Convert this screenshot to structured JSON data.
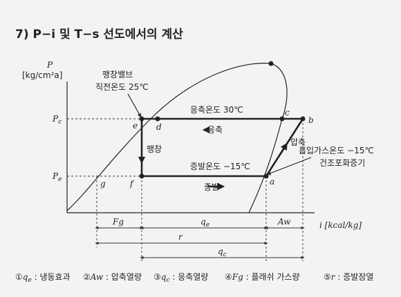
{
  "heading": {
    "number": "7)",
    "text": "P−i 및 T−s 선도에서의 계산"
  },
  "axis": {
    "y_symbol": "P",
    "y_unit": "[kg/cm²a]",
    "pc": {
      "main": "P",
      "sub": "c"
    },
    "pe": {
      "main": "P",
      "sub": "e"
    },
    "x_label": "i [kcal/kg]"
  },
  "annotations": {
    "valve_1": "팽창밸브",
    "valve_2": "직전온도 25℃",
    "cond_temp": "응축온도 30℃",
    "cond": "응축",
    "expand": "팽창",
    "evap_temp": "증발온도 −15℃",
    "evap": "증발",
    "compress": "압축",
    "suction_1": "흡입가스온도 −15℃",
    "suction_2": "건조포화증기"
  },
  "points": {
    "e": "e",
    "d": "d",
    "c": "c",
    "b": "b",
    "g": "g",
    "f": "f",
    "a": "a"
  },
  "dimensions": {
    "fg": "Fg",
    "qe": {
      "main": "q",
      "sub": "e"
    },
    "aw": "Aw",
    "r": "r",
    "qc": {
      "main": "q",
      "sub": "c"
    }
  },
  "legend": [
    {
      "num": "①",
      "sym": "q",
      "sub": "e",
      "desc": " : 냉동효과"
    },
    {
      "num": "②",
      "sym": "Aw",
      "sub": "",
      "desc": " : 압축열량"
    },
    {
      "num": "③",
      "sym": "q",
      "sub": "c",
      "desc": " : 응축열량"
    },
    {
      "num": "④",
      "sym": "Fg",
      "sub": "",
      "desc": " : 플래쉬 가스량"
    },
    {
      "num": "⑤",
      "sym": "r",
      "sub": "",
      "desc": " : 증발잠열"
    }
  ]
}
